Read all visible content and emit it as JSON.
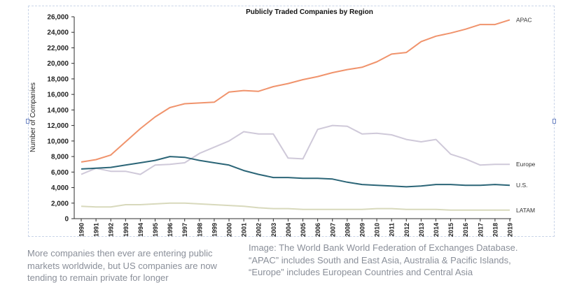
{
  "chart_data": {
    "type": "line",
    "title": "Publicly Traded Companies by Region",
    "ylabel": "Number of Companies",
    "xlabel": "",
    "ylim": [
      0,
      26000
    ],
    "y_ticks": [
      "0",
      "2,000",
      "4,000",
      "6,000",
      "8,000",
      "10,000",
      "12,000",
      "14,000",
      "16,000",
      "18,000",
      "20,000",
      "22,000",
      "24,000",
      "26,000"
    ],
    "x": [
      "1990",
      "1991",
      "1992",
      "1993",
      "1994",
      "1995",
      "1996",
      "1997",
      "1998",
      "1999",
      "2000",
      "2001",
      "2002",
      "2003",
      "2004",
      "2005",
      "2006",
      "2007",
      "2008",
      "2009",
      "2010",
      "2011",
      "2012",
      "2013",
      "2014",
      "2015",
      "2016",
      "2017",
      "2018",
      "2019"
    ],
    "grid": false,
    "legend": "labels at line ends (right)",
    "series": [
      {
        "name": "APAC",
        "color": "#f0936c",
        "values": [
          7300,
          7600,
          8200,
          9900,
          11600,
          13100,
          14300,
          14800,
          14900,
          15000,
          16300,
          16500,
          16400,
          17000,
          17400,
          17900,
          18300,
          18800,
          19200,
          19500,
          20200,
          21200,
          21400,
          22800,
          23500,
          23900,
          24400,
          25000,
          25000,
          25600
        ]
      },
      {
        "name": "Europe",
        "color": "#cfc9d9",
        "values": [
          5700,
          6500,
          6100,
          6100,
          5700,
          6900,
          7000,
          7200,
          8400,
          9200,
          10000,
          11200,
          10900,
          10900,
          7800,
          7700,
          11500,
          12000,
          11900,
          10900,
          11000,
          10800,
          10200,
          9900,
          10200,
          8300,
          7700,
          6900,
          7000,
          7000
        ]
      },
      {
        "name": "U.S.",
        "color": "#2b6577",
        "values": [
          6400,
          6500,
          6600,
          6900,
          7200,
          7500,
          8000,
          7900,
          7500,
          7200,
          6900,
          6200,
          5700,
          5300,
          5300,
          5200,
          5200,
          5100,
          4700,
          4400,
          4300,
          4200,
          4100,
          4200,
          4400,
          4400,
          4300,
          4300,
          4400,
          4300
        ]
      },
      {
        "name": "LATAM",
        "color": "#d8d9bc",
        "values": [
          1600,
          1500,
          1500,
          1800,
          1800,
          1900,
          2000,
          2000,
          1900,
          1800,
          1700,
          1600,
          1400,
          1300,
          1300,
          1200,
          1200,
          1200,
          1200,
          1200,
          1300,
          1300,
          1200,
          1200,
          1200,
          1100,
          1100,
          1100,
          1100,
          1100
        ]
      }
    ],
    "axis_color": "#2d2d2d"
  },
  "captions": {
    "left": "More companies then ever are entering public\nmarkets worldwide, but US companies are now\ntending to remain private for longer",
    "right": "Image: The World Bank World Federation of Exchanges Database.\n“APAC” includes South and East Asia, Australia & Pacific Islands,\n“Europe” includes European Countries and Central Asia"
  }
}
